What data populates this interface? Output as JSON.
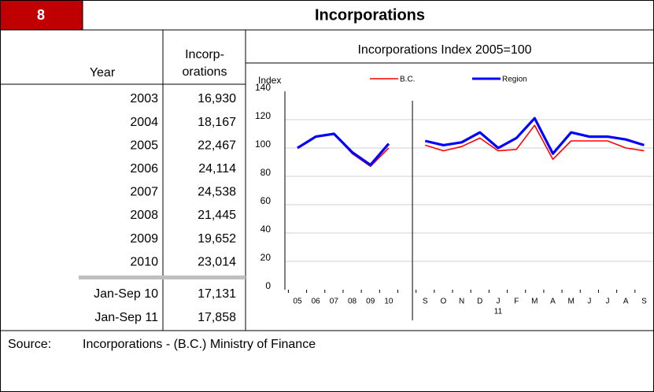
{
  "header": {
    "number": "8",
    "title": "Incorporations"
  },
  "table": {
    "headers": [
      "Year",
      "Incorp-",
      "orations"
    ],
    "rows": [
      [
        "2003",
        "16,930"
      ],
      [
        "2004",
        "18,167"
      ],
      [
        "2005",
        "22,467"
      ],
      [
        "2006",
        "24,114"
      ],
      [
        "2007",
        "24,538"
      ],
      [
        "2008",
        "21,445"
      ],
      [
        "2009",
        "19,652"
      ],
      [
        "2010",
        "23,014"
      ]
    ],
    "ytd_rows": [
      [
        "Jan-Sep 10",
        "17,131"
      ],
      [
        "Jan-Sep 11",
        "17,858"
      ]
    ]
  },
  "chart_data": {
    "type": "line",
    "title": "Incorporations Index   2005=100",
    "y_label": "Index",
    "categories": [
      "05",
      "06",
      "07",
      "08",
      "09",
      "10",
      null,
      "S",
      "O",
      "N",
      "D",
      "J",
      "F",
      "M",
      "A",
      "M",
      "J",
      "J",
      "A",
      "S"
    ],
    "category_years": [
      null,
      null,
      null,
      null,
      null,
      null,
      null,
      null,
      null,
      null,
      null,
      "11",
      null,
      null,
      null,
      null,
      null,
      null,
      null,
      null
    ],
    "series": [
      {
        "name": "B.C.",
        "color": "#ff0000",
        "values": [
          100,
          108,
          110,
          96,
          87,
          100,
          null,
          102,
          98,
          101,
          107,
          98,
          99,
          116,
          92,
          105,
          105,
          105,
          100,
          98
        ]
      },
      {
        "name": "Region",
        "color": "#0000ff",
        "values": [
          100,
          108,
          110,
          97,
          88,
          103,
          null,
          105,
          102,
          104,
          111,
          100,
          107,
          121,
          96,
          111,
          108,
          108,
          106,
          102
        ]
      }
    ],
    "ylim": [
      0,
      140
    ],
    "yticks": [
      0,
      20,
      40,
      60,
      80,
      100,
      120,
      140
    ],
    "grid": true
  },
  "source": {
    "label": "Source:",
    "text": "Incorporations - (B.C.) Ministry of Finance"
  }
}
